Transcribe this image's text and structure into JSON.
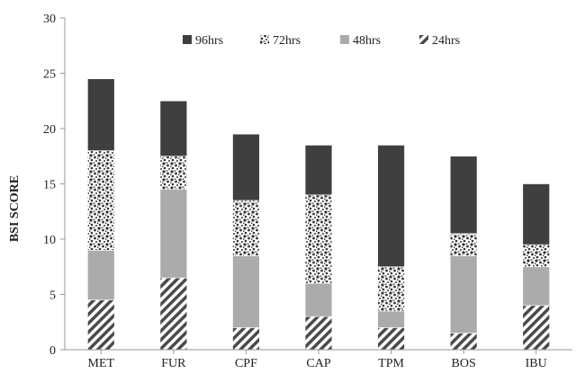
{
  "chart_data": {
    "type": "bar",
    "stacked": true,
    "title": "",
    "xlabel": "",
    "ylabel": "BSI SCORE",
    "ylim": [
      0,
      30
    ],
    "yticks": [
      0,
      5,
      10,
      15,
      20,
      25,
      30
    ],
    "grid": false,
    "legend_position": "top",
    "categories": [
      "MET",
      "FUR",
      "CPF",
      "CAP",
      "TPM",
      "BOS",
      "IBU"
    ],
    "series": [
      {
        "name": "24hrs",
        "pattern": "diagonal-stripes",
        "color": "#4a4a4a",
        "values": [
          4.5,
          6.5,
          2.0,
          3.0,
          2.0,
          1.5,
          4.0
        ]
      },
      {
        "name": "48hrs",
        "pattern": "solid",
        "color": "#ababab",
        "values": [
          4.5,
          8.0,
          6.5,
          3.0,
          1.5,
          7.0,
          3.5
        ]
      },
      {
        "name": "72hrs",
        "pattern": "speckled",
        "color": "#3a3a3a",
        "values": [
          9.0,
          3.0,
          5.0,
          8.0,
          4.0,
          2.0,
          2.0
        ]
      },
      {
        "name": "96hrs",
        "pattern": "solid",
        "color": "#3f3f3f",
        "values": [
          6.5,
          5.0,
          6.0,
          4.5,
          11.0,
          7.0,
          5.5
        ]
      }
    ],
    "legend_order": [
      "96hrs",
      "72hrs",
      "48hrs",
      "24hrs"
    ]
  }
}
